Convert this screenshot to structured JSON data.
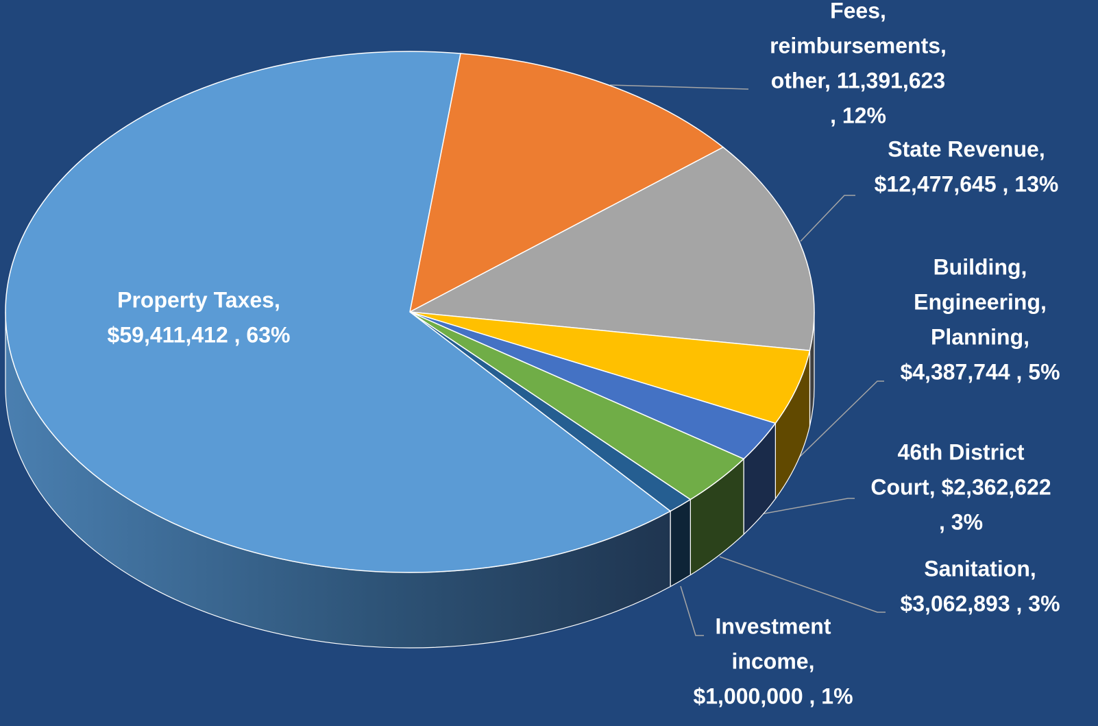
{
  "chart_data": {
    "type": "pie3d",
    "values": [
      11391623,
      12477645,
      4387744,
      2362622,
      3062893,
      1000000,
      59411412
    ],
    "data_labels": [
      [
        "Fees,",
        "reimbursements,",
        "other,  11,391,623",
        ", 12%"
      ],
      [
        "State Revenue,",
        "$12,477,645 , 13%"
      ],
      [
        "Building,",
        "Engineering,",
        "Planning,",
        "$4,387,744 , 5%"
      ],
      [
        "46th District",
        "Court, $2,362,622",
        ", 3%"
      ],
      [
        "Sanitation,",
        "$3,062,893 , 3%"
      ],
      [
        "Investment",
        "income,",
        "$1,000,000 , 1%"
      ],
      [
        "Property Taxes,",
        "$59,411,412 , 63%"
      ]
    ],
    "colors": [
      "#ED7D31",
      "#A5A5A5",
      "#FFC000",
      "#4472C4",
      "#70AD47",
      "#255E91",
      "#5B9BD5"
    ]
  }
}
